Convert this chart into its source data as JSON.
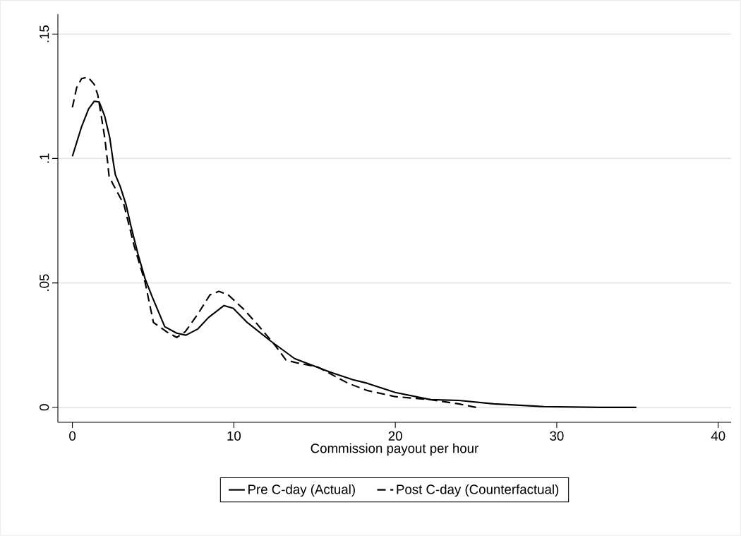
{
  "chart_data": {
    "type": "line",
    "xlabel": "Commission payout per hour",
    "xlim": [
      -0.9,
      40.8
    ],
    "ylim": [
      -0.006,
      0.158
    ],
    "xticks": [
      0,
      10,
      20,
      30,
      40
    ],
    "yticks": [
      {
        "value": 0,
        "label": "0"
      },
      {
        "value": 0.05,
        "label": ".05"
      },
      {
        "value": 0.1,
        "label": ".1"
      },
      {
        "value": 0.15,
        "label": ".15"
      }
    ],
    "grid": "y",
    "legend": "bottom",
    "series": [
      {
        "name": "Pre C-day (Actual)",
        "color": "#000000",
        "line_style": "solid",
        "x": [
          0,
          0.57,
          1.0,
          1.35,
          1.66,
          2.0,
          2.31,
          2.53,
          2.66,
          2.97,
          3.32,
          3.62,
          4.06,
          4.5,
          4.93,
          5.72,
          6.46,
          7.03,
          7.77,
          8.43,
          9.39,
          9.96,
          10.83,
          12.27,
          13.76,
          15.94,
          17.38,
          18.25,
          20.0,
          22.18,
          23.93,
          26.1,
          29.2,
          32.7,
          34.93
        ],
        "values": [
          0.1009,
          0.1128,
          0.1199,
          0.123,
          0.1227,
          0.117,
          0.1085,
          0.0986,
          0.0935,
          0.0886,
          0.0815,
          0.073,
          0.0616,
          0.0517,
          0.0446,
          0.0324,
          0.0298,
          0.029,
          0.0315,
          0.0361,
          0.0409,
          0.0398,
          0.0341,
          0.0267,
          0.0196,
          0.0142,
          0.0111,
          0.0097,
          0.006,
          0.0031,
          0.0028,
          0.0014,
          0.0003,
          0.0,
          0.0
        ]
      },
      {
        "name": "Post C-day (Counterfactual)",
        "color": "#000000",
        "line_style": "dashed",
        "x": [
          0,
          0.26,
          0.57,
          0.96,
          1.35,
          1.57,
          1.79,
          2.0,
          2.18,
          2.27,
          2.53,
          3.19,
          3.84,
          4.5,
          5.02,
          5.9,
          6.46,
          6.99,
          7.77,
          8.52,
          9.08,
          9.65,
          10.6,
          11.48,
          12.58,
          13.23,
          13.89,
          15.2,
          17.07,
          18.25,
          20.0,
          22.18,
          23.93,
          25.0
        ],
        "values": [
          0.1205,
          0.1284,
          0.1321,
          0.1327,
          0.1298,
          0.1256,
          0.117,
          0.1085,
          0.0986,
          0.0929,
          0.0895,
          0.0815,
          0.0645,
          0.0503,
          0.0341,
          0.0301,
          0.0281,
          0.0304,
          0.0375,
          0.0452,
          0.0466,
          0.0452,
          0.0395,
          0.0332,
          0.0247,
          0.019,
          0.0179,
          0.0162,
          0.0097,
          0.0068,
          0.0043,
          0.0031,
          0.0014,
          0.0
        ]
      }
    ]
  }
}
